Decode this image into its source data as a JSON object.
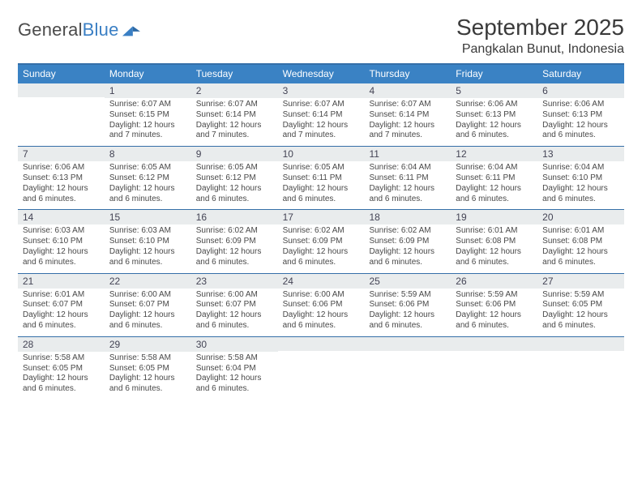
{
  "branding": {
    "logo_word1": "General",
    "logo_word2": "Blue",
    "logo_fill": "#3a7fc4",
    "text_gray": "#4b4b4b"
  },
  "header": {
    "month_title": "September 2025",
    "location": "Pangkalan Bunut, Indonesia"
  },
  "styling": {
    "header_bg": "#3a82c4",
    "header_text": "#ffffff",
    "rule_color": "#356fa8",
    "daynum_bg": "#e9eced",
    "body_text": "#484848",
    "page_bg": "#ffffff",
    "weekday_fontsize": 12,
    "daynum_fontsize": 12,
    "cell_fontsize": 10
  },
  "weekdays": [
    "Sunday",
    "Monday",
    "Tuesday",
    "Wednesday",
    "Thursday",
    "Friday",
    "Saturday"
  ],
  "weeks": [
    [
      {
        "n": "",
        "lines": []
      },
      {
        "n": "1",
        "lines": [
          "Sunrise: 6:07 AM",
          "Sunset: 6:15 PM",
          "Daylight: 12 hours",
          "and 7 minutes."
        ]
      },
      {
        "n": "2",
        "lines": [
          "Sunrise: 6:07 AM",
          "Sunset: 6:14 PM",
          "Daylight: 12 hours",
          "and 7 minutes."
        ]
      },
      {
        "n": "3",
        "lines": [
          "Sunrise: 6:07 AM",
          "Sunset: 6:14 PM",
          "Daylight: 12 hours",
          "and 7 minutes."
        ]
      },
      {
        "n": "4",
        "lines": [
          "Sunrise: 6:07 AM",
          "Sunset: 6:14 PM",
          "Daylight: 12 hours",
          "and 7 minutes."
        ]
      },
      {
        "n": "5",
        "lines": [
          "Sunrise: 6:06 AM",
          "Sunset: 6:13 PM",
          "Daylight: 12 hours",
          "and 6 minutes."
        ]
      },
      {
        "n": "6",
        "lines": [
          "Sunrise: 6:06 AM",
          "Sunset: 6:13 PM",
          "Daylight: 12 hours",
          "and 6 minutes."
        ]
      }
    ],
    [
      {
        "n": "7",
        "lines": [
          "Sunrise: 6:06 AM",
          "Sunset: 6:13 PM",
          "Daylight: 12 hours",
          "and 6 minutes."
        ]
      },
      {
        "n": "8",
        "lines": [
          "Sunrise: 6:05 AM",
          "Sunset: 6:12 PM",
          "Daylight: 12 hours",
          "and 6 minutes."
        ]
      },
      {
        "n": "9",
        "lines": [
          "Sunrise: 6:05 AM",
          "Sunset: 6:12 PM",
          "Daylight: 12 hours",
          "and 6 minutes."
        ]
      },
      {
        "n": "10",
        "lines": [
          "Sunrise: 6:05 AM",
          "Sunset: 6:11 PM",
          "Daylight: 12 hours",
          "and 6 minutes."
        ]
      },
      {
        "n": "11",
        "lines": [
          "Sunrise: 6:04 AM",
          "Sunset: 6:11 PM",
          "Daylight: 12 hours",
          "and 6 minutes."
        ]
      },
      {
        "n": "12",
        "lines": [
          "Sunrise: 6:04 AM",
          "Sunset: 6:11 PM",
          "Daylight: 12 hours",
          "and 6 minutes."
        ]
      },
      {
        "n": "13",
        "lines": [
          "Sunrise: 6:04 AM",
          "Sunset: 6:10 PM",
          "Daylight: 12 hours",
          "and 6 minutes."
        ]
      }
    ],
    [
      {
        "n": "14",
        "lines": [
          "Sunrise: 6:03 AM",
          "Sunset: 6:10 PM",
          "Daylight: 12 hours",
          "and 6 minutes."
        ]
      },
      {
        "n": "15",
        "lines": [
          "Sunrise: 6:03 AM",
          "Sunset: 6:10 PM",
          "Daylight: 12 hours",
          "and 6 minutes."
        ]
      },
      {
        "n": "16",
        "lines": [
          "Sunrise: 6:02 AM",
          "Sunset: 6:09 PM",
          "Daylight: 12 hours",
          "and 6 minutes."
        ]
      },
      {
        "n": "17",
        "lines": [
          "Sunrise: 6:02 AM",
          "Sunset: 6:09 PM",
          "Daylight: 12 hours",
          "and 6 minutes."
        ]
      },
      {
        "n": "18",
        "lines": [
          "Sunrise: 6:02 AM",
          "Sunset: 6:09 PM",
          "Daylight: 12 hours",
          "and 6 minutes."
        ]
      },
      {
        "n": "19",
        "lines": [
          "Sunrise: 6:01 AM",
          "Sunset: 6:08 PM",
          "Daylight: 12 hours",
          "and 6 minutes."
        ]
      },
      {
        "n": "20",
        "lines": [
          "Sunrise: 6:01 AM",
          "Sunset: 6:08 PM",
          "Daylight: 12 hours",
          "and 6 minutes."
        ]
      }
    ],
    [
      {
        "n": "21",
        "lines": [
          "Sunrise: 6:01 AM",
          "Sunset: 6:07 PM",
          "Daylight: 12 hours",
          "and 6 minutes."
        ]
      },
      {
        "n": "22",
        "lines": [
          "Sunrise: 6:00 AM",
          "Sunset: 6:07 PM",
          "Daylight: 12 hours",
          "and 6 minutes."
        ]
      },
      {
        "n": "23",
        "lines": [
          "Sunrise: 6:00 AM",
          "Sunset: 6:07 PM",
          "Daylight: 12 hours",
          "and 6 minutes."
        ]
      },
      {
        "n": "24",
        "lines": [
          "Sunrise: 6:00 AM",
          "Sunset: 6:06 PM",
          "Daylight: 12 hours",
          "and 6 minutes."
        ]
      },
      {
        "n": "25",
        "lines": [
          "Sunrise: 5:59 AM",
          "Sunset: 6:06 PM",
          "Daylight: 12 hours",
          "and 6 minutes."
        ]
      },
      {
        "n": "26",
        "lines": [
          "Sunrise: 5:59 AM",
          "Sunset: 6:06 PM",
          "Daylight: 12 hours",
          "and 6 minutes."
        ]
      },
      {
        "n": "27",
        "lines": [
          "Sunrise: 5:59 AM",
          "Sunset: 6:05 PM",
          "Daylight: 12 hours",
          "and 6 minutes."
        ]
      }
    ],
    [
      {
        "n": "28",
        "lines": [
          "Sunrise: 5:58 AM",
          "Sunset: 6:05 PM",
          "Daylight: 12 hours",
          "and 6 minutes."
        ]
      },
      {
        "n": "29",
        "lines": [
          "Sunrise: 5:58 AM",
          "Sunset: 6:05 PM",
          "Daylight: 12 hours",
          "and 6 minutes."
        ]
      },
      {
        "n": "30",
        "lines": [
          "Sunrise: 5:58 AM",
          "Sunset: 6:04 PM",
          "Daylight: 12 hours",
          "and 6 minutes."
        ]
      },
      {
        "n": "",
        "lines": []
      },
      {
        "n": "",
        "lines": []
      },
      {
        "n": "",
        "lines": []
      },
      {
        "n": "",
        "lines": []
      }
    ]
  ]
}
